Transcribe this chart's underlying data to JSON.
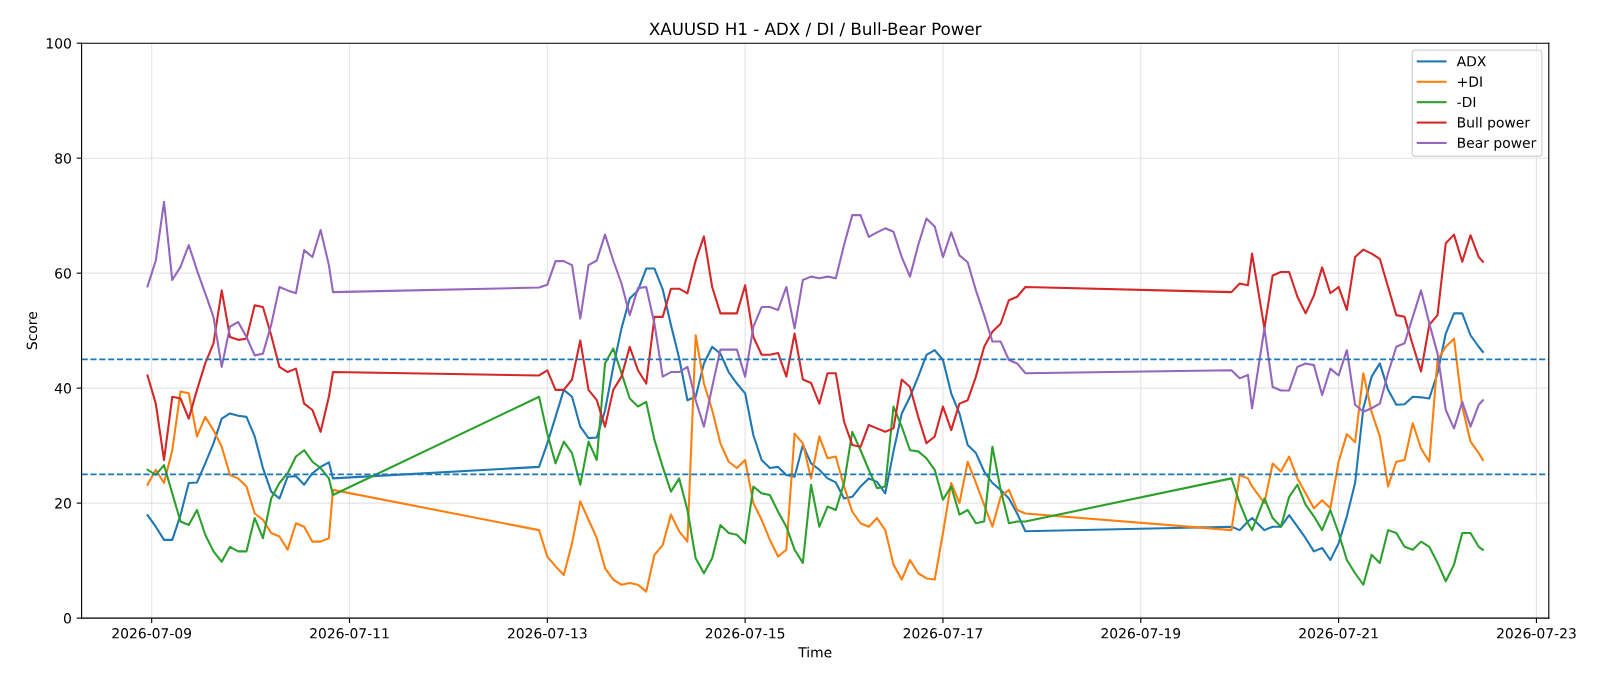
{
  "chart_data": {
    "type": "line",
    "title": "XAUUSD H1 - ADX / DI / Bull-Bear Power",
    "xlabel": "Time",
    "ylabel": "Score",
    "x": [
      "2026-07-08T23:00",
      "2026-07-09T01:00",
      "2026-07-09T03:00",
      "2026-07-09T05:00",
      "2026-07-09T07:00",
      "2026-07-09T09:00",
      "2026-07-09T11:00",
      "2026-07-09T13:00",
      "2026-07-09T15:00",
      "2026-07-09T17:00",
      "2026-07-09T19:00",
      "2026-07-09T21:00",
      "2026-07-09T23:00",
      "2026-07-10T01:00",
      "2026-07-10T03:00",
      "2026-07-10T05:00",
      "2026-07-10T07:00",
      "2026-07-10T09:00",
      "2026-07-10T11:00",
      "2026-07-10T13:00",
      "2026-07-10T15:00",
      "2026-07-10T17:00",
      "2026-07-10T19:00",
      "2026-07-10T20:00",
      "2026-07-12T22:00",
      "2026-07-13T00:00",
      "2026-07-13T02:00",
      "2026-07-13T04:00",
      "2026-07-13T06:00",
      "2026-07-13T08:00",
      "2026-07-13T10:00",
      "2026-07-13T12:00",
      "2026-07-13T14:00",
      "2026-07-13T16:00",
      "2026-07-13T18:00",
      "2026-07-13T20:00",
      "2026-07-13T22:00",
      "2026-07-14T00:00",
      "2026-07-14T02:00",
      "2026-07-14T04:00",
      "2026-07-14T06:00",
      "2026-07-14T08:00",
      "2026-07-14T10:00",
      "2026-07-14T12:00",
      "2026-07-14T14:00",
      "2026-07-14T16:00",
      "2026-07-14T18:00",
      "2026-07-14T20:00",
      "2026-07-14T22:00",
      "2026-07-15T00:00",
      "2026-07-15T02:00",
      "2026-07-15T04:00",
      "2026-07-15T06:00",
      "2026-07-15T08:00",
      "2026-07-15T10:00",
      "2026-07-15T12:00",
      "2026-07-15T14:00",
      "2026-07-15T16:00",
      "2026-07-15T18:00",
      "2026-07-15T20:00",
      "2026-07-15T22:00",
      "2026-07-16T00:00",
      "2026-07-16T02:00",
      "2026-07-16T04:00",
      "2026-07-16T06:00",
      "2026-07-16T08:00",
      "2026-07-16T10:00",
      "2026-07-16T12:00",
      "2026-07-16T14:00",
      "2026-07-16T16:00",
      "2026-07-16T18:00",
      "2026-07-16T20:00",
      "2026-07-16T22:00",
      "2026-07-17T00:00",
      "2026-07-17T02:00",
      "2026-07-17T04:00",
      "2026-07-17T06:00",
      "2026-07-17T08:00",
      "2026-07-17T10:00",
      "2026-07-17T12:00",
      "2026-07-17T14:00",
      "2026-07-17T16:00",
      "2026-07-17T18:00",
      "2026-07-17T20:00",
      "2026-07-19T22:00",
      "2026-07-20T00:00",
      "2026-07-20T02:00",
      "2026-07-20T03:00",
      "2026-07-20T06:00",
      "2026-07-20T08:00",
      "2026-07-20T10:00",
      "2026-07-20T12:00",
      "2026-07-20T14:00",
      "2026-07-20T16:00",
      "2026-07-20T18:00",
      "2026-07-20T20:00",
      "2026-07-20T22:00",
      "2026-07-21T00:00",
      "2026-07-21T02:00",
      "2026-07-21T04:00",
      "2026-07-21T06:00",
      "2026-07-21T08:00",
      "2026-07-21T10:00",
      "2026-07-21T12:00",
      "2026-07-21T14:00",
      "2026-07-21T16:00",
      "2026-07-21T18:00",
      "2026-07-21T20:00",
      "2026-07-21T22:00",
      "2026-07-22T00:00",
      "2026-07-22T02:00",
      "2026-07-22T04:00",
      "2026-07-22T06:00",
      "2026-07-22T08:00",
      "2026-07-22T10:00",
      "2026-07-22T11:00"
    ],
    "series": [
      {
        "name": "ADX",
        "color": "#1f77b4",
        "values": [
          17.9,
          15.9,
          13.6,
          13.6,
          17.9,
          23.5,
          23.6,
          26.9,
          30.4,
          34.7,
          35.6,
          35.2,
          35.0,
          31.6,
          26.1,
          22.0,
          20.8,
          24.6,
          24.7,
          23.2,
          25.2,
          26.3,
          27.1,
          24.3,
          26.3,
          30.4,
          35.0,
          39.7,
          38.5,
          33.3,
          31.3,
          31.4,
          36.1,
          43.7,
          50.4,
          55.6,
          57.0,
          60.8,
          60.8,
          57.2,
          51.0,
          45.2,
          37.9,
          38.5,
          44.3,
          47.2,
          46.0,
          42.8,
          40.8,
          39.1,
          31.8,
          27.5,
          26.1,
          26.3,
          24.9,
          24.6,
          30.1,
          26.9,
          25.8,
          24.3,
          23.6,
          20.8,
          21.1,
          22.9,
          24.3,
          23.7,
          21.7,
          29.0,
          35.6,
          38.5,
          42.0,
          45.8,
          46.6,
          44.9,
          39.1,
          35.6,
          30.1,
          28.7,
          25.5,
          23.5,
          22.3,
          20.8,
          18.2,
          15.1,
          15.9,
          15.3,
          16.8,
          17.4,
          15.3,
          15.9,
          15.9,
          17.9,
          15.9,
          13.9,
          11.6,
          12.2,
          10.1,
          13.0,
          17.7,
          23.5,
          36.5,
          42.0,
          44.3,
          39.7,
          37.1,
          37.2,
          38.5,
          38.4,
          38.2,
          42.6,
          49.5,
          53.0,
          53.0,
          49.2,
          47.2,
          46.3
        ]
      },
      {
        "name": "+DI",
        "color": "#ff7f0e",
        "values": [
          23.2,
          25.8,
          23.5,
          29.2,
          39.4,
          39.1,
          31.6,
          35.0,
          32.7,
          29.8,
          24.9,
          24.3,
          22.9,
          18.2,
          17.1,
          14.8,
          14.2,
          11.9,
          16.5,
          15.9,
          13.3,
          13.3,
          13.9,
          22.3,
          15.3,
          10.7,
          9.0,
          7.5,
          13.0,
          20.3,
          17.1,
          13.9,
          8.7,
          6.7,
          5.8,
          6.1,
          5.8,
          4.6,
          11.0,
          12.7,
          18.0,
          15.1,
          13.3,
          49.2,
          40.8,
          36.2,
          30.4,
          27.2,
          26.1,
          27.5,
          20.0,
          17.1,
          13.6,
          10.7,
          11.9,
          32.1,
          30.4,
          24.3,
          31.6,
          27.8,
          28.1,
          22.9,
          18.5,
          16.5,
          15.9,
          17.4,
          15.3,
          9.3,
          6.7,
          10.1,
          7.8,
          6.9,
          6.7,
          14.8,
          23.5,
          20.0,
          27.2,
          23.5,
          19.7,
          15.9,
          21.1,
          22.3,
          18.8,
          18.2,
          15.3,
          24.9,
          24.3,
          22.9,
          20.0,
          26.9,
          25.5,
          28.1,
          24.3,
          21.7,
          19.1,
          20.5,
          19.1,
          27.2,
          32.0,
          30.6,
          42.6,
          35.9,
          31.6,
          22.9,
          27.2,
          27.5,
          33.9,
          29.5,
          27.2,
          44.9,
          47.2,
          48.6,
          36.8,
          30.7,
          28.7,
          27.5
        ]
      },
      {
        "name": "-DI",
        "color": "#2ca02c",
        "values": [
          25.8,
          24.9,
          26.6,
          21.7,
          16.8,
          16.2,
          18.8,
          14.5,
          11.6,
          9.8,
          12.4,
          11.6,
          11.6,
          17.4,
          13.9,
          20.8,
          23.5,
          25.2,
          28.1,
          29.2,
          27.2,
          26.1,
          24.3,
          21.4,
          38.5,
          32.1,
          26.9,
          30.7,
          28.7,
          23.2,
          30.7,
          27.5,
          44.3,
          46.9,
          42.6,
          38.2,
          36.8,
          37.6,
          31.0,
          26.3,
          22.0,
          24.3,
          18.8,
          10.4,
          7.8,
          10.4,
          16.2,
          14.8,
          14.5,
          13.0,
          22.9,
          21.7,
          21.4,
          18.5,
          15.9,
          11.9,
          9.6,
          23.2,
          15.9,
          19.4,
          18.8,
          23.5,
          32.4,
          29.2,
          25.8,
          22.6,
          22.9,
          36.8,
          33.3,
          29.2,
          29.0,
          27.8,
          25.8,
          20.6,
          22.9,
          18.0,
          18.8,
          16.5,
          16.8,
          29.8,
          22.3,
          16.5,
          16.8,
          16.8,
          24.3,
          20.0,
          16.5,
          15.3,
          20.8,
          17.4,
          15.9,
          21.1,
          23.2,
          19.7,
          17.7,
          15.3,
          18.8,
          14.8,
          10.1,
          7.8,
          5.8,
          11.0,
          9.6,
          15.3,
          14.8,
          12.4,
          11.9,
          13.3,
          12.4,
          9.6,
          6.4,
          9.3,
          14.8,
          14.8,
          12.4,
          11.9
        ]
      },
      {
        "name": "Bull power",
        "color": "#d62728",
        "values": [
          42.2,
          37.3,
          27.5,
          38.5,
          38.2,
          34.7,
          39.7,
          44.3,
          47.8,
          57.0,
          48.9,
          48.4,
          48.6,
          54.4,
          54.1,
          49.2,
          43.7,
          42.8,
          43.4,
          37.3,
          36.2,
          32.4,
          38.5,
          42.8,
          42.2,
          43.1,
          39.7,
          39.7,
          41.5,
          48.3,
          39.7,
          37.9,
          33.3,
          39.7,
          42.0,
          47.2,
          43.1,
          40.8,
          52.4,
          52.4,
          57.3,
          57.3,
          56.5,
          62.2,
          66.4,
          57.6,
          53.0,
          53.0,
          53.0,
          57.9,
          48.9,
          45.8,
          45.8,
          46.1,
          42.0,
          49.5,
          41.5,
          40.9,
          37.3,
          42.6,
          42.6,
          34.2,
          30.1,
          29.8,
          33.6,
          33.0,
          32.4,
          33.0,
          41.5,
          40.2,
          35.0,
          30.4,
          31.6,
          36.8,
          32.7,
          37.3,
          37.9,
          42.0,
          47.2,
          49.8,
          51.2,
          55.3,
          55.9,
          57.6,
          56.7,
          58.2,
          57.9,
          63.4,
          50.4,
          59.6,
          60.2,
          60.2,
          55.9,
          53.0,
          56.1,
          61.0,
          56.5,
          57.6,
          53.6,
          62.8,
          64.1,
          63.4,
          62.5,
          57.6,
          52.7,
          52.4,
          47.5,
          42.9,
          51.0,
          52.7,
          65.2,
          66.7,
          62.0,
          66.6,
          62.8,
          62.0
        ]
      },
      {
        "name": "Bear power",
        "color": "#9467bd",
        "values": [
          57.7,
          62.2,
          72.4,
          58.8,
          61.1,
          64.9,
          60.5,
          56.5,
          52.4,
          43.7,
          50.7,
          51.5,
          48.9,
          45.7,
          46.0,
          51.0,
          57.6,
          57.0,
          56.5,
          64.0,
          62.8,
          67.5,
          61.4,
          56.7,
          57.5,
          58.0,
          62.1,
          62.1,
          61.4,
          52.1,
          61.4,
          62.2,
          66.7,
          62.2,
          58.2,
          52.7,
          57.4,
          57.6,
          51.2,
          42.0,
          42.8,
          42.8,
          43.7,
          37.9,
          33.3,
          40.2,
          46.7,
          46.7,
          46.7,
          42.0,
          50.7,
          54.1,
          54.1,
          53.6,
          57.6,
          50.4,
          58.8,
          59.4,
          59.1,
          59.4,
          59.1,
          64.9,
          70.1,
          70.1,
          66.3,
          67.1,
          67.8,
          67.2,
          62.8,
          59.4,
          64.9,
          69.5,
          68.1,
          62.8,
          67.1,
          63.1,
          61.9,
          57.0,
          52.7,
          48.1,
          48.1,
          44.9,
          44.3,
          42.6,
          43.1,
          41.7,
          42.3,
          36.5,
          50.4,
          40.2,
          39.6,
          39.6,
          43.7,
          44.3,
          44.0,
          38.8,
          43.4,
          42.2,
          46.6,
          37.1,
          35.9,
          36.5,
          37.3,
          42.6,
          47.2,
          47.8,
          52.4,
          57.0,
          51.3,
          46.0,
          36.2,
          33.0,
          37.6,
          33.3,
          37.1,
          37.9
        ]
      }
    ],
    "ref_lines": [
      {
        "axis": "y",
        "value": 45,
        "color": "#1f77b4",
        "line_style": "dashed"
      },
      {
        "axis": "y",
        "value": 25,
        "color": "#1f77b4",
        "line_style": "dashed"
      }
    ],
    "xlim": [
      "2026-07-08T07:00",
      "2026-07-23T03:00"
    ],
    "xticks": [
      "2026-07-09",
      "2026-07-11",
      "2026-07-13",
      "2026-07-15",
      "2026-07-17",
      "2026-07-19",
      "2026-07-21",
      "2026-07-23"
    ],
    "ylim": [
      0,
      100
    ],
    "yticks": [
      0,
      20,
      40,
      60,
      80,
      100
    ],
    "grid": true,
    "legend": "top right",
    "line_style": "solid",
    "marker": "none"
  }
}
